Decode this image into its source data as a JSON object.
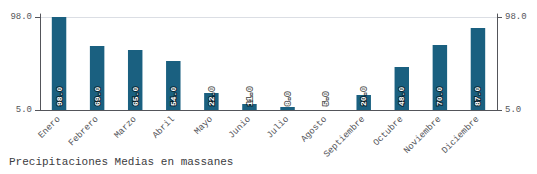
{
  "chart_data": {
    "type": "bar",
    "title": "Precipitaciones Medias en massanes",
    "categories": [
      "Enero",
      "Febrero",
      "Marzo",
      "Abril",
      "Mayo",
      "Junio",
      "Julio",
      "Agosto",
      "Septiembre",
      "Octubre",
      "Noviembre",
      "Diciembre"
    ],
    "values": [
      98,
      69,
      65,
      54,
      22,
      11,
      8,
      5,
      20,
      48,
      70,
      87
    ],
    "value_labels": [
      "98.0",
      "69.0",
      "65.0",
      "54.0",
      "22.0",
      "11.0",
      "8.0",
      "5.0",
      "20.0",
      "48.0",
      "70.0",
      "87.0"
    ],
    "data_labels": true,
    "color": "#1a6080",
    "ylim": [
      5,
      101
    ],
    "yticks": [
      {
        "value": 5,
        "label": "5.0"
      },
      {
        "value": 98,
        "label": "98.0"
      }
    ],
    "y2lim": [
      5,
      101
    ],
    "y2ticks": [
      {
        "value": 5,
        "label": "5.0"
      },
      {
        "value": 98,
        "label": "98.0"
      }
    ],
    "grid": true
  }
}
